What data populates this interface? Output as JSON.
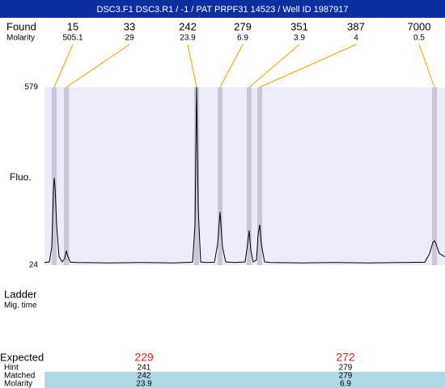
{
  "header": {
    "title": "DSC3.F1  DSC3.R1 / -1 / PAT PRPF31 14523 / Well ID 1987917"
  },
  "found": {
    "label": "Found",
    "sublabel": "Molarity",
    "peaks": [
      {
        "size": 15,
        "molarity": 505.1,
        "x": 12
      },
      {
        "size": 33,
        "molarity": 29,
        "x": 27
      },
      {
        "size": 242,
        "molarity": 23.9,
        "x": 188
      },
      {
        "size": 279,
        "molarity": 6.9,
        "x": 217
      },
      {
        "size": 351,
        "molarity": 3.9,
        "x": 253
      },
      {
        "size": 387,
        "molarity": 4,
        "x": 266
      },
      {
        "size": 7000,
        "molarity": 0.5,
        "x": 482
      }
    ]
  },
  "chart_data": {
    "type": "line",
    "y_axis_label": "Fluo.",
    "color": "#000000",
    "xlim": [
      0,
      495
    ],
    "ylim": [
      24,
      579
    ],
    "yticks": [
      24,
      579
    ],
    "x": [
      0,
      6,
      9,
      11,
      12,
      13,
      15,
      18,
      22,
      25,
      27,
      29,
      32,
      40,
      80,
      120,
      160,
      183,
      186,
      188,
      190,
      193,
      200,
      210,
      214,
      217,
      220,
      224,
      235,
      248,
      251,
      253,
      255,
      258,
      262,
      264,
      266,
      268,
      272,
      280,
      320,
      360,
      400,
      440,
      470,
      476,
      480,
      482,
      484,
      488,
      495
    ],
    "values": [
      32,
      34,
      80,
      250,
      296,
      270,
      150,
      50,
      34,
      45,
      69,
      50,
      33,
      32,
      31,
      32,
      31,
      33,
      150,
      579,
      200,
      34,
      32,
      33,
      90,
      190,
      80,
      34,
      32,
      34,
      90,
      132,
      70,
      34,
      40,
      120,
      150,
      90,
      34,
      32,
      31,
      32,
      31,
      32,
      33,
      60,
      95,
      100,
      90,
      60,
      50
    ]
  },
  "ladder": {
    "label": "Ladder",
    "sublabel": "Mig. time"
  },
  "expected": {
    "labels": [
      "Expected",
      "Hint",
      "Matched",
      "Molarity"
    ],
    "columns": [
      [
        229,
        241,
        242,
        23.9
      ],
      [
        272,
        279,
        279,
        6.9
      ]
    ]
  }
}
